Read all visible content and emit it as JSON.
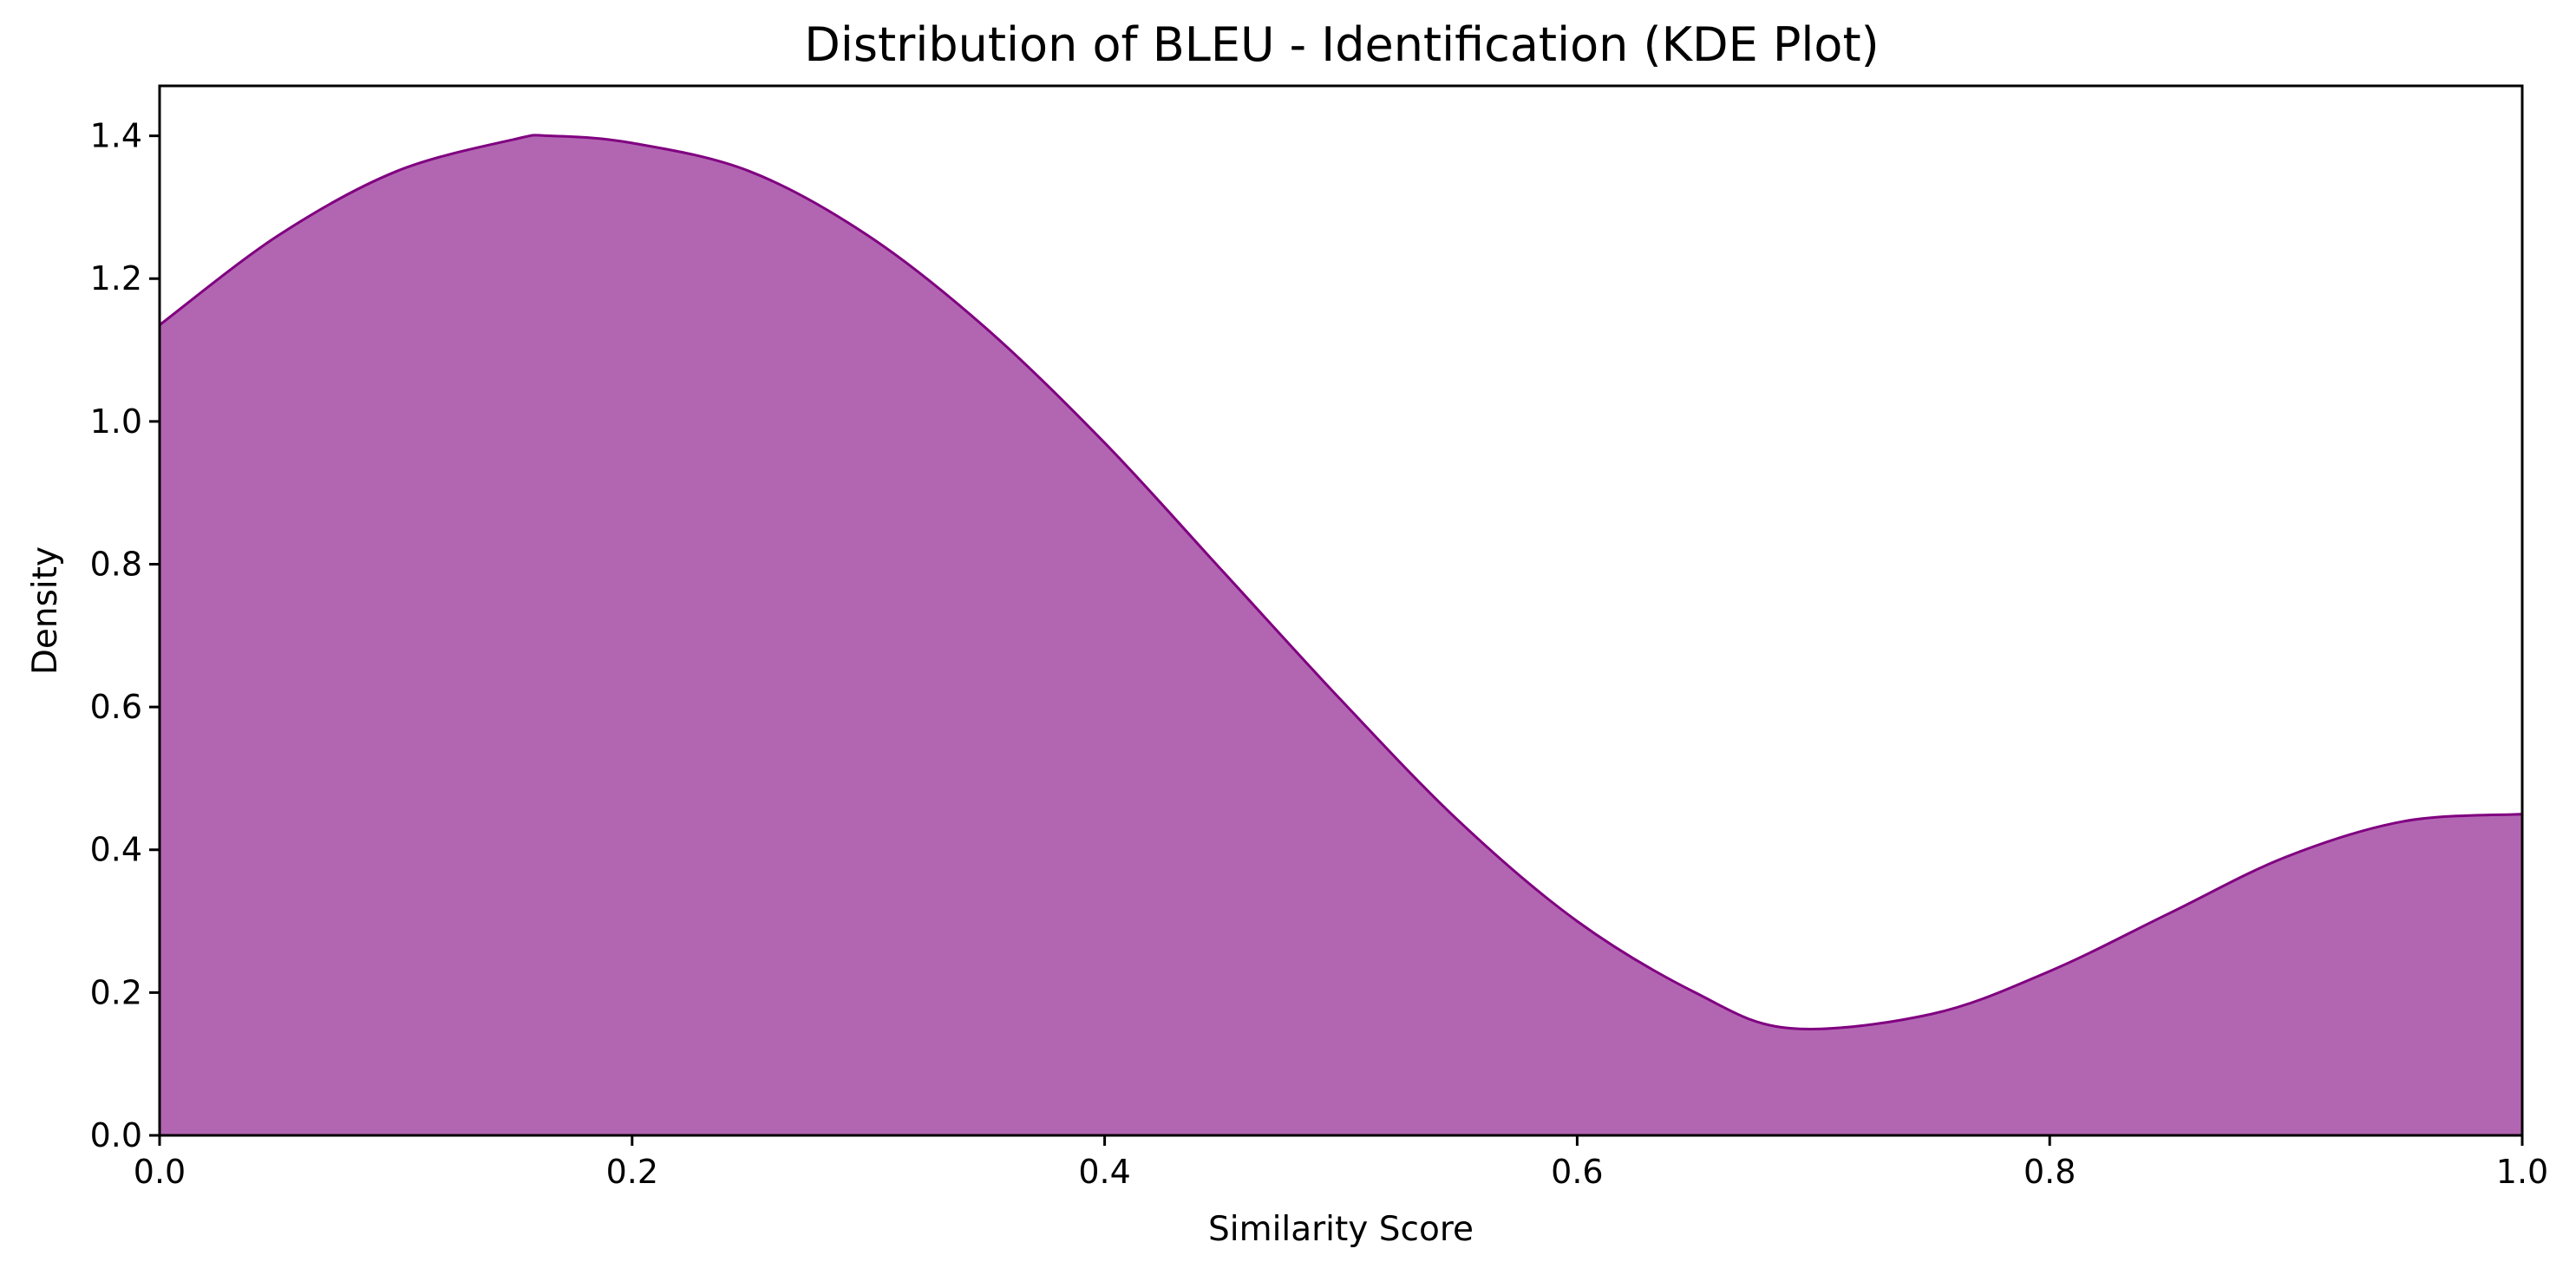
{
  "chart_data": {
    "type": "area",
    "title": "Distribution of BLEU - Identification (KDE Plot)",
    "xlabel": "Similarity Score",
    "ylabel": "Density",
    "xlim": [
      0.0,
      1.0
    ],
    "ylim": [
      0.0,
      1.47
    ],
    "xticks": [
      "0.0",
      "0.2",
      "0.4",
      "0.6",
      "0.8",
      "1.0"
    ],
    "yticks": [
      "0.0",
      "0.2",
      "0.4",
      "0.6",
      "0.8",
      "1.0",
      "1.2",
      "1.4"
    ],
    "grid": false,
    "fill_color": "#b266b2",
    "line_color": "#800080",
    "x": [
      0.0,
      0.05,
      0.1,
      0.15,
      0.165,
      0.2,
      0.25,
      0.3,
      0.35,
      0.4,
      0.45,
      0.5,
      0.55,
      0.6,
      0.65,
      0.69,
      0.75,
      0.8,
      0.85,
      0.9,
      0.95,
      1.0
    ],
    "y": [
      1.135,
      1.26,
      1.35,
      1.395,
      1.4,
      1.39,
      1.35,
      1.26,
      1.13,
      0.97,
      0.79,
      0.61,
      0.44,
      0.3,
      0.2,
      0.15,
      0.17,
      0.23,
      0.31,
      0.39,
      0.44,
      0.45
    ]
  }
}
